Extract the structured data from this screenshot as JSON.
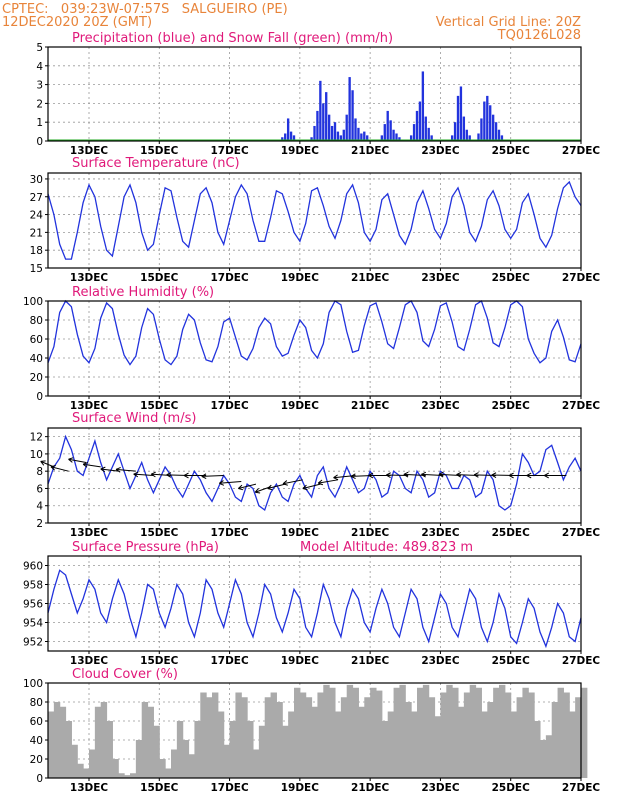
{
  "header": {
    "left_line1": "CPTEC:   039:23W-07:57S   SALGUEIRO (PE)",
    "left_line2": "12DEC2020 20Z (GMT)",
    "right_line1": "Vertical Grid Line: 20Z",
    "right_line2": "TQ0126L028"
  },
  "x_axis": {
    "start_hours": 0,
    "end_hours": 364,
    "tick_labels": [
      "13DEC",
      "15DEC",
      "17DEC",
      "19DEC",
      "21DEC",
      "23DEC",
      "25DEC",
      "27DEC"
    ],
    "tick_hours": [
      28,
      76,
      124,
      172,
      220,
      268,
      316,
      364
    ]
  },
  "colors": {
    "precip": "#2233dd",
    "snow": "#22aa22",
    "line": "#2233dd",
    "cloud": "#aaaaaa",
    "title": "#e0197a",
    "header": "#e8843a"
  },
  "chart_data": [
    {
      "id": "precip",
      "type": "bar",
      "title": "Precipitation (blue) and Snow Fall (green) (mm/h)",
      "ylim": [
        0,
        5
      ],
      "yticks": [
        0,
        1,
        2,
        3,
        4,
        5
      ],
      "bars": [
        [
          160,
          0.2
        ],
        [
          162,
          0.4
        ],
        [
          164,
          1.2
        ],
        [
          166,
          0.5
        ],
        [
          168,
          0.3
        ],
        [
          180,
          0.2
        ],
        [
          182,
          0.8
        ],
        [
          184,
          1.6
        ],
        [
          186,
          3.2
        ],
        [
          188,
          2.0
        ],
        [
          190,
          2.6
        ],
        [
          192,
          1.4
        ],
        [
          194,
          0.8
        ],
        [
          196,
          1.0
        ],
        [
          198,
          0.5
        ],
        [
          200,
          0.3
        ],
        [
          202,
          0.6
        ],
        [
          204,
          1.4
        ],
        [
          206,
          3.4
        ],
        [
          208,
          2.7
        ],
        [
          210,
          1.2
        ],
        [
          212,
          0.7
        ],
        [
          214,
          0.4
        ],
        [
          216,
          0.5
        ],
        [
          218,
          0.3
        ],
        [
          228,
          0.3
        ],
        [
          230,
          0.9
        ],
        [
          232,
          1.6
        ],
        [
          234,
          1.1
        ],
        [
          236,
          0.6
        ],
        [
          238,
          0.4
        ],
        [
          240,
          0.2
        ],
        [
          248,
          0.3
        ],
        [
          250,
          0.9
        ],
        [
          252,
          1.6
        ],
        [
          254,
          2.1
        ],
        [
          256,
          3.7
        ],
        [
          258,
          1.3
        ],
        [
          260,
          0.7
        ],
        [
          262,
          0.3
        ],
        [
          276,
          0.3
        ],
        [
          278,
          1.0
        ],
        [
          280,
          2.4
        ],
        [
          282,
          2.9
        ],
        [
          284,
          1.3
        ],
        [
          286,
          0.6
        ],
        [
          288,
          0.3
        ],
        [
          294,
          0.4
        ],
        [
          296,
          1.2
        ],
        [
          298,
          2.1
        ],
        [
          300,
          2.4
        ],
        [
          302,
          1.9
        ],
        [
          304,
          1.4
        ],
        [
          306,
          1.0
        ],
        [
          308,
          0.6
        ],
        [
          310,
          0.3
        ]
      ]
    },
    {
      "id": "temperature",
      "type": "line",
      "title": "Surface Temperature (nC)",
      "ylim": [
        15,
        31
      ],
      "yticks": [
        15,
        18,
        21,
        24,
        27,
        30
      ],
      "x": [
        0,
        4,
        8,
        12,
        16,
        20,
        24,
        28,
        32,
        36,
        40,
        44,
        48,
        52,
        56,
        60,
        64,
        68,
        72,
        76,
        80,
        84,
        88,
        92,
        96,
        100,
        104,
        108,
        112,
        116,
        120,
        124,
        128,
        132,
        136,
        140,
        144,
        148,
        152,
        156,
        160,
        164,
        168,
        172,
        176,
        180,
        184,
        188,
        192,
        196,
        200,
        204,
        208,
        212,
        216,
        220,
        224,
        228,
        232,
        236,
        240,
        244,
        248,
        252,
        256,
        260,
        264,
        268,
        272,
        276,
        280,
        284,
        288,
        292,
        296,
        300,
        304,
        308,
        312,
        316,
        320,
        324,
        328,
        332,
        336,
        340,
        344,
        348,
        352,
        356,
        360,
        364
      ],
      "y": [
        27.5,
        24,
        19,
        16.5,
        16.5,
        21,
        26,
        29,
        27,
        22,
        18,
        17,
        22,
        27,
        29,
        26,
        21,
        18,
        19,
        24,
        28.5,
        28,
        23.5,
        19.5,
        18.5,
        23,
        27.5,
        28.5,
        26,
        21,
        19,
        23,
        27,
        29,
        27.5,
        23,
        19.5,
        19.5,
        23.5,
        28,
        27.5,
        24.5,
        21,
        19.5,
        22.5,
        28,
        28.5,
        25.5,
        22,
        20,
        23,
        27.5,
        29,
        26,
        21,
        19.5,
        21.5,
        26.5,
        27.5,
        24,
        20.5,
        19,
        21.5,
        26,
        28,
        25,
        21.5,
        20,
        22.5,
        27,
        28.5,
        25.5,
        21,
        19.5,
        22,
        26.5,
        28,
        25.5,
        21.5,
        20,
        21.5,
        26,
        27.5,
        24,
        20,
        18.5,
        20.5,
        25,
        28.5,
        29.5,
        27,
        25.5
      ]
    },
    {
      "id": "humidity",
      "type": "line",
      "title": "Relative Humidity (%)",
      "ylim": [
        0,
        100
      ],
      "yticks": [
        0,
        20,
        40,
        60,
        80,
        100
      ],
      "x": [
        0,
        4,
        8,
        12,
        16,
        20,
        24,
        28,
        32,
        36,
        40,
        44,
        48,
        52,
        56,
        60,
        64,
        68,
        72,
        76,
        80,
        84,
        88,
        92,
        96,
        100,
        104,
        108,
        112,
        116,
        120,
        124,
        128,
        132,
        136,
        140,
        144,
        148,
        152,
        156,
        160,
        164,
        168,
        172,
        176,
        180,
        184,
        188,
        192,
        196,
        200,
        204,
        208,
        212,
        216,
        220,
        224,
        228,
        232,
        236,
        240,
        244,
        248,
        252,
        256,
        260,
        264,
        268,
        272,
        276,
        280,
        284,
        288,
        292,
        296,
        300,
        304,
        308,
        312,
        316,
        320,
        324,
        328,
        332,
        336,
        340,
        344,
        348,
        352,
        356,
        360,
        364
      ],
      "y": [
        35,
        52,
        88,
        100,
        94,
        65,
        42,
        35,
        50,
        82,
        98,
        92,
        65,
        43,
        33,
        42,
        72,
        92,
        86,
        60,
        38,
        33,
        42,
        70,
        86,
        80,
        56,
        38,
        36,
        52,
        78,
        82,
        62,
        42,
        38,
        50,
        72,
        82,
        76,
        52,
        42,
        45,
        64,
        80,
        72,
        48,
        40,
        55,
        88,
        100,
        96,
        68,
        46,
        48,
        74,
        95,
        98,
        78,
        55,
        50,
        72,
        96,
        100,
        88,
        58,
        52,
        70,
        95,
        98,
        78,
        52,
        48,
        70,
        96,
        100,
        82,
        56,
        52,
        72,
        96,
        100,
        94,
        60,
        45,
        35,
        40,
        68,
        80,
        62,
        38,
        36,
        55
      ]
    },
    {
      "id": "wind",
      "type": "line",
      "title": "Surface Wind (m/s)",
      "ylim": [
        2,
        13
      ],
      "yticks": [
        2,
        4,
        6,
        8,
        10,
        12
      ],
      "x": [
        0,
        4,
        8,
        12,
        16,
        20,
        24,
        28,
        32,
        36,
        40,
        44,
        48,
        52,
        56,
        60,
        64,
        68,
        72,
        76,
        80,
        84,
        88,
        92,
        96,
        100,
        104,
        108,
        112,
        116,
        120,
        124,
        128,
        132,
        136,
        140,
        144,
        148,
        152,
        156,
        160,
        164,
        168,
        172,
        176,
        180,
        184,
        188,
        192,
        196,
        200,
        204,
        208,
        212,
        216,
        220,
        224,
        228,
        232,
        236,
        240,
        244,
        248,
        252,
        256,
        260,
        264,
        268,
        272,
        276,
        280,
        284,
        288,
        292,
        296,
        300,
        304,
        308,
        312,
        316,
        320,
        324,
        328,
        332,
        336,
        340,
        344,
        348,
        352,
        356,
        360,
        364
      ],
      "y": [
        6.5,
        8.5,
        9.5,
        12,
        10.5,
        8,
        7.5,
        9.5,
        11.5,
        9,
        7,
        8.5,
        10,
        8,
        6,
        7.5,
        9,
        7,
        5.5,
        7,
        8.5,
        7.5,
        6,
        5,
        6.5,
        8,
        7,
        5.5,
        4.5,
        6,
        7.5,
        6.5,
        5,
        4.5,
        6.5,
        6,
        4,
        3.5,
        5.5,
        6.5,
        5,
        4.5,
        6.5,
        7.5,
        6,
        5,
        7.5,
        8.5,
        6,
        5,
        6.5,
        8.5,
        7,
        5.5,
        6,
        8,
        7,
        5,
        5.5,
        8,
        7.5,
        6,
        5.5,
        8,
        7,
        5,
        5.5,
        8,
        7.5,
        6,
        6,
        7.5,
        7,
        5,
        5.5,
        8,
        7,
        4,
        3.5,
        4,
        6.5,
        10,
        9,
        7.5,
        8,
        10.5,
        11,
        9,
        7,
        8.5,
        9.5,
        8
      ],
      "arrows": [
        [
          4,
          8.5,
          -6,
          2.5
        ],
        [
          14,
          8.0,
          -8,
          2
        ],
        [
          26,
          9.0,
          -8,
          1.5
        ],
        [
          36,
          8.5,
          -8,
          1.2
        ],
        [
          48,
          8.0,
          -8,
          1
        ],
        [
          60,
          8.0,
          -9,
          0.8
        ],
        [
          72,
          7.5,
          -9,
          0.6
        ],
        [
          84,
          7.5,
          -9,
          0.6
        ],
        [
          96,
          7.5,
          -10,
          0.3
        ],
        [
          108,
          7.5,
          -10,
          0
        ],
        [
          120,
          7.5,
          -10,
          -0.4
        ],
        [
          132,
          6.8,
          -10,
          -0.8
        ],
        [
          142,
          6.5,
          -8,
          -2
        ],
        [
          152,
          6.2,
          -7,
          -2.5
        ],
        [
          162,
          6.5,
          -8,
          -2
        ],
        [
          174,
          7.0,
          -9,
          -1.8
        ],
        [
          186,
          6.5,
          -8,
          -2
        ],
        [
          198,
          7.0,
          -9,
          -1.5
        ],
        [
          210,
          7.5,
          -10,
          -1
        ],
        [
          222,
          7.5,
          -10,
          -0.4
        ],
        [
          234,
          7.5,
          -10,
          0
        ],
        [
          246,
          7.5,
          -10,
          0.2
        ],
        [
          258,
          7.5,
          -10,
          0.5
        ],
        [
          270,
          7.5,
          -10,
          0.5
        ],
        [
          282,
          7.5,
          -10,
          0.5
        ],
        [
          294,
          7.5,
          -10,
          0.4
        ],
        [
          306,
          7.5,
          -10,
          0.3
        ],
        [
          318,
          7.5,
          -10,
          0.2
        ],
        [
          330,
          7.5,
          -10,
          0
        ],
        [
          342,
          7.5,
          -10,
          0
        ],
        [
          354,
          7.5,
          -10,
          0
        ]
      ]
    },
    {
      "id": "pressure",
      "type": "line",
      "title": "Surface Pressure (hPa)",
      "annotation": "Model Altitude: 489.823 m",
      "ylim": [
        951,
        961
      ],
      "yticks": [
        952,
        954,
        956,
        958,
        960
      ],
      "x": [
        0,
        4,
        8,
        12,
        16,
        20,
        24,
        28,
        32,
        36,
        40,
        44,
        48,
        52,
        56,
        60,
        64,
        68,
        72,
        76,
        80,
        84,
        88,
        92,
        96,
        100,
        104,
        108,
        112,
        116,
        120,
        124,
        128,
        132,
        136,
        140,
        144,
        148,
        152,
        156,
        160,
        164,
        168,
        172,
        176,
        180,
        184,
        188,
        192,
        196,
        200,
        204,
        208,
        212,
        216,
        220,
        224,
        228,
        232,
        236,
        240,
        244,
        248,
        252,
        256,
        260,
        264,
        268,
        272,
        276,
        280,
        284,
        288,
        292,
        296,
        300,
        304,
        308,
        312,
        316,
        320,
        324,
        328,
        332,
        336,
        340,
        344,
        348,
        352,
        356,
        360,
        364
      ],
      "y": [
        955,
        957.5,
        959.5,
        959,
        957,
        955,
        956.5,
        958.5,
        957.5,
        955,
        954,
        956.5,
        958.5,
        957,
        954.5,
        952.5,
        955,
        958,
        957.5,
        955,
        953.5,
        955.5,
        958,
        957,
        954,
        952.5,
        955,
        958.5,
        957.5,
        955,
        953.5,
        956,
        958.5,
        957,
        954,
        952.5,
        955,
        958,
        957,
        954.5,
        953,
        955,
        957.5,
        956.5,
        953.5,
        952.5,
        955,
        958,
        956.5,
        954,
        952.5,
        955.5,
        957.5,
        956.5,
        954,
        953,
        955.5,
        957.5,
        956,
        953.5,
        952.5,
        955,
        957.5,
        956.5,
        953.5,
        952,
        954.5,
        957,
        956,
        953.5,
        952.5,
        955,
        957.5,
        956.5,
        953.5,
        952,
        954,
        957,
        955.5,
        952.5,
        951.8,
        954,
        956.5,
        955.5,
        953,
        951.5,
        953.5,
        956,
        955,
        952.5,
        952,
        954.5
      ]
    },
    {
      "id": "cloud",
      "type": "bar",
      "title": "Cloud Cover (%)",
      "ylim": [
        0,
        100
      ],
      "yticks": [
        0,
        20,
        40,
        60,
        80,
        100
      ],
      "x": [
        0,
        4,
        8,
        12,
        16,
        20,
        24,
        28,
        32,
        36,
        40,
        44,
        48,
        52,
        56,
        60,
        64,
        68,
        72,
        76,
        80,
        84,
        88,
        92,
        96,
        100,
        104,
        108,
        112,
        116,
        120,
        124,
        128,
        132,
        136,
        140,
        144,
        148,
        152,
        156,
        160,
        164,
        168,
        172,
        176,
        180,
        184,
        188,
        192,
        196,
        200,
        204,
        208,
        212,
        216,
        220,
        224,
        228,
        232,
        236,
        240,
        244,
        248,
        252,
        256,
        260,
        264,
        268,
        272,
        276,
        280,
        284,
        288,
        292,
        296,
        300,
        304,
        308,
        312,
        316,
        320,
        324,
        328,
        332,
        336,
        340,
        344,
        348,
        352,
        356,
        360,
        364
      ],
      "y": [
        70,
        80,
        75,
        60,
        35,
        15,
        10,
        30,
        75,
        80,
        60,
        20,
        5,
        3,
        5,
        40,
        80,
        75,
        55,
        20,
        10,
        30,
        60,
        40,
        25,
        60,
        90,
        85,
        90,
        70,
        35,
        60,
        90,
        85,
        60,
        30,
        55,
        85,
        90,
        80,
        55,
        70,
        95,
        90,
        85,
        75,
        90,
        98,
        95,
        70,
        85,
        98,
        95,
        75,
        85,
        95,
        92,
        60,
        70,
        95,
        98,
        80,
        70,
        95,
        98,
        85,
        65,
        90,
        98,
        95,
        75,
        90,
        98,
        95,
        70,
        80,
        95,
        98,
        90,
        70,
        85,
        95,
        90,
        60,
        40,
        45,
        80,
        95,
        90,
        70,
        85,
        95
      ]
    }
  ]
}
